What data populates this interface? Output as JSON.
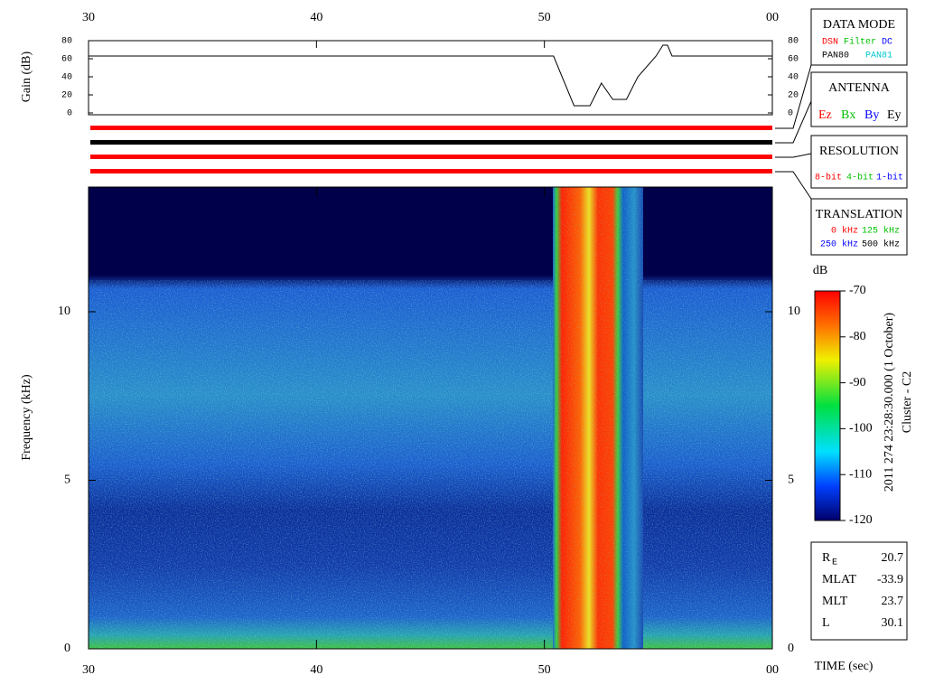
{
  "chart_data": [
    {
      "type": "line",
      "ylabel": "Gain (dB)",
      "xlim": [
        30,
        60
      ],
      "xticks": [
        30,
        40,
        50,
        {
          "value": 60,
          "label": "00"
        }
      ],
      "ylim": [
        0,
        80
      ],
      "yticks": [
        0,
        20,
        40,
        60,
        80
      ],
      "x": [
        30,
        50.4,
        51.3,
        52.0,
        52.5,
        53.0,
        53.6,
        54.1,
        54.9,
        55.2,
        55.4,
        55.6,
        60
      ],
      "series": [
        {
          "color": "#000000",
          "values": [
            63,
            63,
            8,
            8,
            33,
            15,
            15,
            40,
            63,
            75,
            75,
            63,
            63
          ]
        }
      ]
    },
    {
      "type": "spectrogram",
      "ylabel": "Frequency (kHz)",
      "xlabel": "TIME (sec)",
      "xlim": [
        30,
        60
      ],
      "xticks": [
        30,
        40,
        50,
        {
          "value": 60,
          "label": "00"
        }
      ],
      "ylim": [
        0,
        13.7
      ],
      "yticks": [
        0,
        5,
        10
      ]
    },
    {
      "type": "colorbar",
      "title": "dB",
      "ylim": [
        -120,
        -70
      ],
      "yticks": [
        -120,
        -110,
        -100,
        -90,
        -80,
        -70
      ]
    }
  ],
  "header": {
    "date": "2011 274 23:28:30.000 (1 October)",
    "spacecraft": "Cluster - C2"
  },
  "panels": {
    "data_mode": {
      "title": "DATA MODE",
      "items": [
        "DSN",
        "Filter",
        "DC",
        "PAN80",
        "PAN81"
      ]
    },
    "antenna": {
      "title": "ANTENNA",
      "items": [
        "Ez",
        "Bx",
        "By",
        "Ey"
      ]
    },
    "resolution": {
      "title": "RESOLUTION",
      "items": [
        "8-bit",
        "4-bit",
        "1-bit"
      ]
    },
    "translation": {
      "title": "TRANSLATION",
      "items": [
        "0 kHz",
        "125 kHz",
        "250 kHz",
        "500 kHz"
      ]
    }
  },
  "ephemeris": [
    {
      "label": "R",
      "sub": "E",
      "value": "20.7"
    },
    {
      "label": "MLAT",
      "value": "-33.9"
    },
    {
      "label": "MLT",
      "value": "23.7"
    },
    {
      "label": "L",
      "value": "30.1"
    }
  ]
}
